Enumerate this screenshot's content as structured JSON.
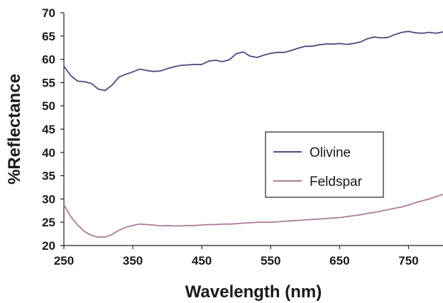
{
  "chart_data": {
    "type": "line",
    "title": "",
    "xlabel": "Wavelength (nm)",
    "ylabel": "%Reflectance",
    "xlim": [
      250,
      800
    ],
    "ylim": [
      20,
      70
    ],
    "x_ticks": [
      250,
      350,
      450,
      550,
      650,
      750
    ],
    "y_ticks": [
      20,
      25,
      30,
      35,
      40,
      45,
      50,
      55,
      60,
      65,
      70
    ],
    "grid": false,
    "legend_position": "center-right",
    "series": [
      {
        "name": "Olivine",
        "color": "#4a4a80",
        "points": [
          [
            250,
            58.5
          ],
          [
            260,
            56.5
          ],
          [
            270,
            55.3
          ],
          [
            280,
            55.2
          ],
          [
            290,
            54.8
          ],
          [
            300,
            53.6
          ],
          [
            310,
            53.3
          ],
          [
            320,
            54.5
          ],
          [
            330,
            56.2
          ],
          [
            340,
            56.8
          ],
          [
            350,
            57.3
          ],
          [
            360,
            57.9
          ],
          [
            370,
            57.6
          ],
          [
            380,
            57.4
          ],
          [
            390,
            57.5
          ],
          [
            400,
            58.0
          ],
          [
            410,
            58.4
          ],
          [
            420,
            58.7
          ],
          [
            430,
            58.8
          ],
          [
            440,
            58.9
          ],
          [
            450,
            58.9
          ],
          [
            460,
            59.6
          ],
          [
            470,
            59.8
          ],
          [
            480,
            59.5
          ],
          [
            490,
            59.9
          ],
          [
            500,
            61.2
          ],
          [
            510,
            61.6
          ],
          [
            520,
            60.7
          ],
          [
            530,
            60.4
          ],
          [
            540,
            60.9
          ],
          [
            550,
            61.3
          ],
          [
            560,
            61.5
          ],
          [
            570,
            61.5
          ],
          [
            580,
            61.9
          ],
          [
            590,
            62.4
          ],
          [
            600,
            62.8
          ],
          [
            610,
            62.8
          ],
          [
            620,
            63.1
          ],
          [
            630,
            63.3
          ],
          [
            640,
            63.3
          ],
          [
            650,
            63.4
          ],
          [
            660,
            63.2
          ],
          [
            670,
            63.4
          ],
          [
            680,
            63.7
          ],
          [
            690,
            64.4
          ],
          [
            700,
            64.8
          ],
          [
            710,
            64.6
          ],
          [
            720,
            64.7
          ],
          [
            730,
            65.3
          ],
          [
            740,
            65.8
          ],
          [
            750,
            66.0
          ],
          [
            760,
            65.7
          ],
          [
            770,
            65.6
          ],
          [
            780,
            65.8
          ],
          [
            790,
            65.6
          ],
          [
            800,
            65.9
          ]
        ]
      },
      {
        "name": "Feldspar",
        "color": "#b07a9e",
        "points": [
          [
            250,
            28.8
          ],
          [
            260,
            26.2
          ],
          [
            270,
            24.4
          ],
          [
            280,
            23.0
          ],
          [
            290,
            22.2
          ],
          [
            300,
            21.8
          ],
          [
            310,
            21.8
          ],
          [
            320,
            22.4
          ],
          [
            330,
            23.3
          ],
          [
            340,
            23.9
          ],
          [
            350,
            24.3
          ],
          [
            360,
            24.6
          ],
          [
            370,
            24.5
          ],
          [
            380,
            24.4
          ],
          [
            390,
            24.2
          ],
          [
            400,
            24.3
          ],
          [
            410,
            24.2
          ],
          [
            420,
            24.2
          ],
          [
            430,
            24.3
          ],
          [
            440,
            24.3
          ],
          [
            450,
            24.4
          ],
          [
            460,
            24.5
          ],
          [
            470,
            24.5
          ],
          [
            480,
            24.6
          ],
          [
            490,
            24.6
          ],
          [
            500,
            24.7
          ],
          [
            510,
            24.8
          ],
          [
            520,
            24.9
          ],
          [
            530,
            25.0
          ],
          [
            540,
            25.0
          ],
          [
            550,
            25.0
          ],
          [
            560,
            25.1
          ],
          [
            570,
            25.2
          ],
          [
            580,
            25.3
          ],
          [
            590,
            25.4
          ],
          [
            600,
            25.5
          ],
          [
            610,
            25.6
          ],
          [
            620,
            25.7
          ],
          [
            630,
            25.8
          ],
          [
            640,
            25.9
          ],
          [
            650,
            26.0
          ],
          [
            660,
            26.2
          ],
          [
            670,
            26.4
          ],
          [
            680,
            26.6
          ],
          [
            690,
            26.9
          ],
          [
            700,
            27.1
          ],
          [
            710,
            27.4
          ],
          [
            720,
            27.7
          ],
          [
            730,
            28.0
          ],
          [
            740,
            28.3
          ],
          [
            750,
            28.7
          ],
          [
            760,
            29.2
          ],
          [
            770,
            29.6
          ],
          [
            780,
            30.0
          ],
          [
            790,
            30.5
          ],
          [
            800,
            31.0
          ]
        ]
      }
    ]
  }
}
